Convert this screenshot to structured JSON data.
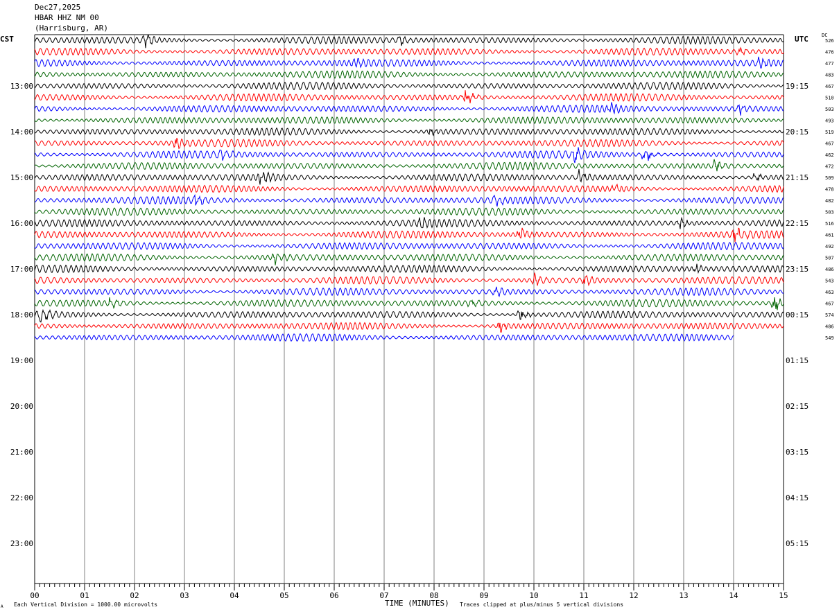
{
  "header": {
    "date": "Dec27,2025",
    "station": "HBAR HHZ NM 00",
    "location": "(Harrisburg, AR)"
  },
  "left_axis_title": "CST",
  "right_axis_title": "UTC",
  "dc_title": "DC",
  "footer": {
    "scale_note": "Each Vertical Division = 1000.00 microvolts",
    "xlabel": "TIME (MINUTES)",
    "clip_note": "Traces clipped at plus/minus 5 vertical divisions",
    "corner_mark": "A"
  },
  "colors": {
    "trace_cycle": [
      "#000000",
      "#ff0000",
      "#0000ff",
      "#006400"
    ],
    "grid": "#808080",
    "frame": "#000000"
  },
  "chart_data": {
    "type": "line",
    "title": "",
    "xlabel": "TIME (MINUTES)",
    "ylabel": "",
    "xlim": [
      0,
      15
    ],
    "x_ticks": [
      "00",
      "01",
      "02",
      "03",
      "04",
      "05",
      "06",
      "07",
      "08",
      "09",
      "10",
      "11",
      "12",
      "13",
      "14",
      "15"
    ],
    "minor_ticks_per_minute": 10,
    "grid": true,
    "minutes_per_row": 15,
    "rows_per_hour": 4,
    "total_rows": 48,
    "left_time_labels": [
      "13:00",
      "14:00",
      "15:00",
      "16:00",
      "17:00",
      "18:00",
      "19:00",
      "20:00",
      "21:00",
      "22:00",
      "23:00"
    ],
    "right_time_labels": [
      "19:15",
      "20:15",
      "21:15",
      "22:15",
      "23:15",
      "00:15",
      "01:15",
      "02:15",
      "03:15",
      "04:15",
      "05:15"
    ],
    "first_hour_label_row": 4,
    "dc_offsets": [
      526,
      476,
      477,
      483,
      467,
      510,
      503,
      493,
      519,
      467,
      462,
      472,
      509,
      478,
      482,
      503,
      516,
      461,
      492,
      507,
      486,
      543,
      463,
      467,
      574,
      486,
      549
    ],
    "last_trace_end_minute": 14,
    "events": [
      {
        "row": 0,
        "minute": 2.2,
        "amplitude": 2.0
      },
      {
        "row": 0,
        "minute": 7.3,
        "amplitude": 1.4
      },
      {
        "row": 1,
        "minute": 14.1,
        "amplitude": 1.3
      },
      {
        "row": 2,
        "minute": 6.4,
        "amplitude": 1.3
      },
      {
        "row": 2,
        "minute": 14.5,
        "amplitude": 1.4
      },
      {
        "row": 5,
        "minute": 8.6,
        "amplitude": 3.0
      },
      {
        "row": 6,
        "minute": 11.5,
        "amplitude": 1.5
      },
      {
        "row": 6,
        "minute": 14.1,
        "amplitude": 1.6
      },
      {
        "row": 8,
        "minute": 7.9,
        "amplitude": 1.2
      },
      {
        "row": 9,
        "minute": 2.8,
        "amplitude": 1.6
      },
      {
        "row": 10,
        "minute": 3.7,
        "amplitude": 1.8
      },
      {
        "row": 10,
        "minute": 10.8,
        "amplitude": 2.0
      },
      {
        "row": 10,
        "minute": 12.2,
        "amplitude": 2.4
      },
      {
        "row": 11,
        "minute": 13.6,
        "amplitude": 1.8
      },
      {
        "row": 12,
        "minute": 4.5,
        "amplitude": 2.4
      },
      {
        "row": 12,
        "minute": 10.9,
        "amplitude": 2.0
      },
      {
        "row": 12,
        "minute": 14.4,
        "amplitude": 1.4
      },
      {
        "row": 13,
        "minute": 11.6,
        "amplitude": 1.2
      },
      {
        "row": 14,
        "minute": 3.2,
        "amplitude": 1.5
      },
      {
        "row": 14,
        "minute": 9.2,
        "amplitude": 1.5
      },
      {
        "row": 16,
        "minute": 7.7,
        "amplitude": 1.6
      },
      {
        "row": 16,
        "minute": 12.9,
        "amplitude": 1.8
      },
      {
        "row": 17,
        "minute": 9.7,
        "amplitude": 2.0
      },
      {
        "row": 17,
        "minute": 14.0,
        "amplitude": 2.2
      },
      {
        "row": 19,
        "minute": 4.8,
        "amplitude": 1.6
      },
      {
        "row": 20,
        "minute": 13.2,
        "amplitude": 1.3
      },
      {
        "row": 21,
        "minute": 10.0,
        "amplitude": 1.6
      },
      {
        "row": 21,
        "minute": 11.0,
        "amplitude": 1.5
      },
      {
        "row": 22,
        "minute": 9.2,
        "amplitude": 1.4
      },
      {
        "row": 23,
        "minute": 1.5,
        "amplitude": 1.3
      },
      {
        "row": 23,
        "minute": 8.7,
        "amplitude": 1.4
      },
      {
        "row": 23,
        "minute": 14.8,
        "amplitude": 2.4
      },
      {
        "row": 24,
        "minute": 0.1,
        "amplitude": 2.0
      },
      {
        "row": 24,
        "minute": 9.7,
        "amplitude": 2.2
      },
      {
        "row": 25,
        "minute": 9.3,
        "amplitude": 1.8
      }
    ]
  }
}
